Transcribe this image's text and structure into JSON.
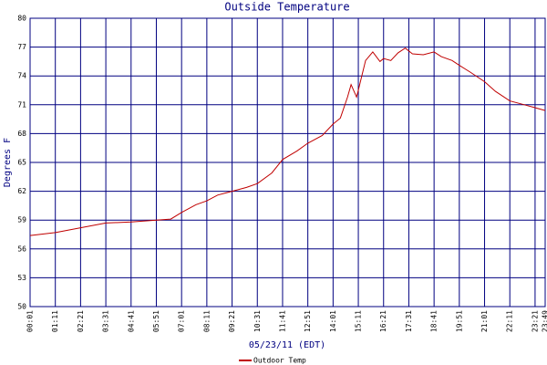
{
  "chart_data": {
    "type": "line",
    "title": "Outside Temperature",
    "x_label": "05/23/11 (EDT)",
    "y_label": "Degrees F",
    "xlim": [
      "00:01",
      "23:49"
    ],
    "xticks": [
      "00:01",
      "01:11",
      "02:21",
      "03:31",
      "04:41",
      "05:51",
      "07:01",
      "08:11",
      "09:21",
      "10:31",
      "11:41",
      "12:51",
      "14:01",
      "15:11",
      "16:21",
      "17:31",
      "18:41",
      "19:51",
      "21:01",
      "22:11",
      "23:21",
      "23:49"
    ],
    "ylim": [
      50,
      80
    ],
    "yticks": [
      50,
      53,
      56,
      59,
      62,
      65,
      68,
      71,
      74,
      77,
      80
    ],
    "grid": true,
    "series": [
      {
        "name": "Outdoor Temp",
        "color": "#c00000",
        "x": [
          "00:01",
          "01:11",
          "02:21",
          "03:31",
          "04:41",
          "05:51",
          "06:31",
          "07:01",
          "07:41",
          "08:11",
          "08:41",
          "09:21",
          "10:01",
          "10:31",
          "11:11",
          "11:41",
          "12:21",
          "12:51",
          "13:31",
          "14:01",
          "14:21",
          "14:41",
          "14:51",
          "15:06",
          "15:11",
          "15:31",
          "15:51",
          "16:11",
          "16:21",
          "16:41",
          "17:01",
          "17:21",
          "17:41",
          "18:11",
          "18:41",
          "19:01",
          "19:31",
          "19:51",
          "20:21",
          "21:01",
          "21:31",
          "22:11",
          "22:51",
          "23:21",
          "23:49"
        ],
        "values": [
          57.4,
          57.7,
          58.2,
          58.7,
          58.8,
          59.0,
          59.1,
          59.8,
          60.6,
          61.0,
          61.6,
          62.0,
          62.4,
          62.8,
          63.9,
          65.3,
          66.2,
          67.0,
          67.8,
          69.0,
          69.6,
          71.8,
          73.1,
          71.8,
          72.5,
          75.6,
          76.5,
          75.5,
          75.8,
          75.6,
          76.4,
          76.9,
          76.3,
          76.2,
          76.5,
          76.0,
          75.6,
          75.1,
          74.4,
          73.4,
          72.4,
          71.4,
          71.0,
          70.7,
          70.4
        ]
      }
    ]
  }
}
